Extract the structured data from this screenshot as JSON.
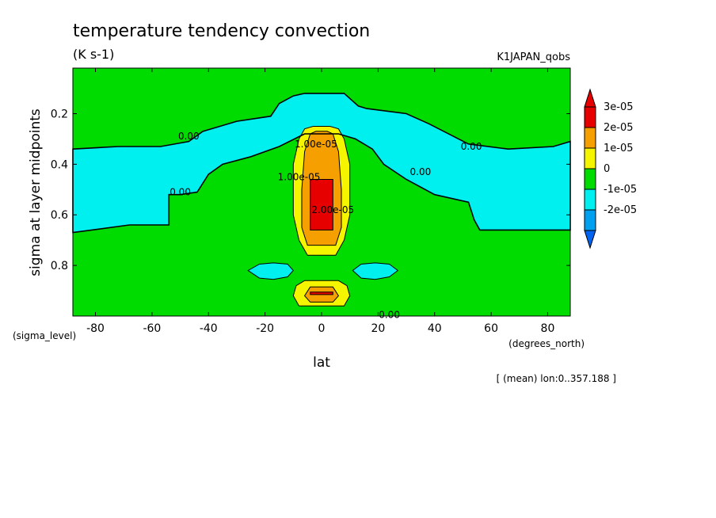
{
  "chart_data": {
    "type": "heatmap",
    "title": "temperature tendency convection",
    "units": "(K s-1)",
    "dataset": "K1JAPAN_qobs",
    "xlabel": "lat",
    "ylabel": "sigma at layer midpoints",
    "x_unit_label": "(degrees_north)",
    "y_unit_label": "(sigma_level)",
    "annotation": "[ (mean) lon:0..357.188 ]",
    "xlim": [
      -88,
      88
    ],
    "ylim": [
      1.0,
      0.02
    ],
    "x_ticks": [
      {
        "value": -80,
        "label": "-80"
      },
      {
        "value": -60,
        "label": "-60"
      },
      {
        "value": -40,
        "label": "-40"
      },
      {
        "value": -20,
        "label": "-20"
      },
      {
        "value": 0,
        "label": "0"
      },
      {
        "value": 20,
        "label": "20"
      },
      {
        "value": 40,
        "label": "40"
      },
      {
        "value": 60,
        "label": "60"
      },
      {
        "value": 80,
        "label": "80"
      }
    ],
    "y_ticks": [
      {
        "value": 0.2,
        "label": "0.2"
      },
      {
        "value": 0.4,
        "label": "0.4"
      },
      {
        "value": 0.6,
        "label": "0.6"
      },
      {
        "value": 0.8,
        "label": "0.8"
      }
    ],
    "colorbar": [
      {
        "label": "3e-05",
        "color": "#e60000"
      },
      {
        "label": "2e-05",
        "color": "#f5a000"
      },
      {
        "label": "1e-05",
        "color": "#f5f500"
      },
      {
        "label": "0",
        "color": "#00dc00"
      },
      {
        "label": "-1e-05",
        "color": "#00f0f0"
      },
      {
        "label": "-2e-05",
        "color": "#00a0f0"
      }
    ],
    "colorbar_top_color": "#e60000",
    "colorbar_bottom_color": "#0064f0",
    "contour_labels": [
      {
        "text": "0.00",
        "lat": -47,
        "sigma": 0.29
      },
      {
        "text": "0.00",
        "lat": -50,
        "sigma": 0.51
      },
      {
        "text": "0.00",
        "lat": 53,
        "sigma": 0.33
      },
      {
        "text": "0.00",
        "lat": 35,
        "sigma": 0.43
      },
      {
        "text": "0.00",
        "lat": 24,
        "sigma": 0.995
      },
      {
        "text": "1.00e-05",
        "lat": -8,
        "sigma": 0.45
      },
      {
        "text": "1.00e-05",
        "lat": -2,
        "sigma": 0.32
      },
      {
        "text": "2.00e-05",
        "lat": 4,
        "sigma": 0.58
      }
    ],
    "regions": {
      "band_neg1": [
        [
          -88,
          0.34
        ],
        [
          -72,
          0.33
        ],
        [
          -57,
          0.33
        ],
        [
          -47,
          0.31
        ],
        [
          -42,
          0.27
        ],
        [
          -30,
          0.23
        ],
        [
          -18,
          0.21
        ],
        [
          -15,
          0.16
        ],
        [
          -10,
          0.13
        ],
        [
          -6,
          0.12
        ],
        [
          8,
          0.12
        ],
        [
          13,
          0.17
        ],
        [
          16,
          0.18
        ],
        [
          30,
          0.2
        ],
        [
          38,
          0.24
        ],
        [
          52,
          0.32
        ],
        [
          66,
          0.34
        ],
        [
          82,
          0.33
        ],
        [
          88,
          0.31
        ],
        [
          88,
          0.66
        ],
        [
          56,
          0.66
        ],
        [
          54,
          0.62
        ],
        [
          52,
          0.55
        ],
        [
          40,
          0.52
        ],
        [
          30,
          0.46
        ],
        [
          22,
          0.4
        ],
        [
          18,
          0.34
        ],
        [
          12,
          0.3
        ],
        [
          6,
          0.28
        ],
        [
          -6,
          0.28
        ],
        [
          -15,
          0.33
        ],
        [
          -25,
          0.37
        ],
        [
          -35,
          0.4
        ],
        [
          -40,
          0.44
        ],
        [
          -44,
          0.51
        ],
        [
          -50,
          0.52
        ],
        [
          -54,
          0.52
        ],
        [
          -54,
          0.64
        ],
        [
          -68,
          0.64
        ],
        [
          -88,
          0.67
        ]
      ],
      "blob_left": [
        [
          -26,
          0.82
        ],
        [
          -22,
          0.795
        ],
        [
          -17,
          0.79
        ],
        [
          -12,
          0.795
        ],
        [
          -10,
          0.82
        ],
        [
          -12,
          0.845
        ],
        [
          -17,
          0.855
        ],
        [
          -22,
          0.85
        ]
      ],
      "blob_right": [
        [
          11,
          0.82
        ],
        [
          14,
          0.795
        ],
        [
          19,
          0.79
        ],
        [
          24,
          0.795
        ],
        [
          27,
          0.82
        ],
        [
          24,
          0.845
        ],
        [
          19,
          0.855
        ],
        [
          14,
          0.85
        ]
      ],
      "band_pos1_upper": [
        [
          -10,
          0.4
        ],
        [
          -8,
          0.3
        ],
        [
          -6,
          0.26
        ],
        [
          -3,
          0.25
        ],
        [
          3,
          0.25
        ],
        [
          6,
          0.26
        ],
        [
          8,
          0.3
        ],
        [
          10,
          0.4
        ],
        [
          10,
          0.6
        ],
        [
          8,
          0.7
        ],
        [
          5,
          0.76
        ],
        [
          -5,
          0.76
        ],
        [
          -8,
          0.7
        ],
        [
          -10,
          0.6
        ]
      ],
      "band_pos2_upper": [
        [
          -7,
          0.5
        ],
        [
          -6,
          0.35
        ],
        [
          -4,
          0.28
        ],
        [
          -2,
          0.27
        ],
        [
          2,
          0.27
        ],
        [
          4,
          0.28
        ],
        [
          6,
          0.35
        ],
        [
          7,
          0.5
        ],
        [
          7,
          0.65
        ],
        [
          5,
          0.72
        ],
        [
          -5,
          0.72
        ],
        [
          -7,
          0.65
        ]
      ],
      "band_pos3_upper": [
        [
          -4,
          0.46
        ],
        [
          4,
          0.46
        ],
        [
          4,
          0.66
        ],
        [
          -4,
          0.66
        ]
      ],
      "band_pos1_lower": [
        [
          -10,
          0.92
        ],
        [
          -9,
          0.88
        ],
        [
          -6,
          0.86
        ],
        [
          6,
          0.86
        ],
        [
          9,
          0.88
        ],
        [
          10,
          0.92
        ],
        [
          8,
          0.96
        ],
        [
          -8,
          0.96
        ]
      ],
      "band_pos2_lower": [
        [
          -6,
          0.92
        ],
        [
          -4,
          0.885
        ],
        [
          4,
          0.885
        ],
        [
          6,
          0.92
        ],
        [
          4,
          0.945
        ],
        [
          -4,
          0.945
        ]
      ],
      "band_pos3_lower": [
        [
          -4,
          0.905
        ],
        [
          4,
          0.905
        ],
        [
          4,
          0.915
        ],
        [
          -4,
          0.915
        ]
      ]
    }
  }
}
